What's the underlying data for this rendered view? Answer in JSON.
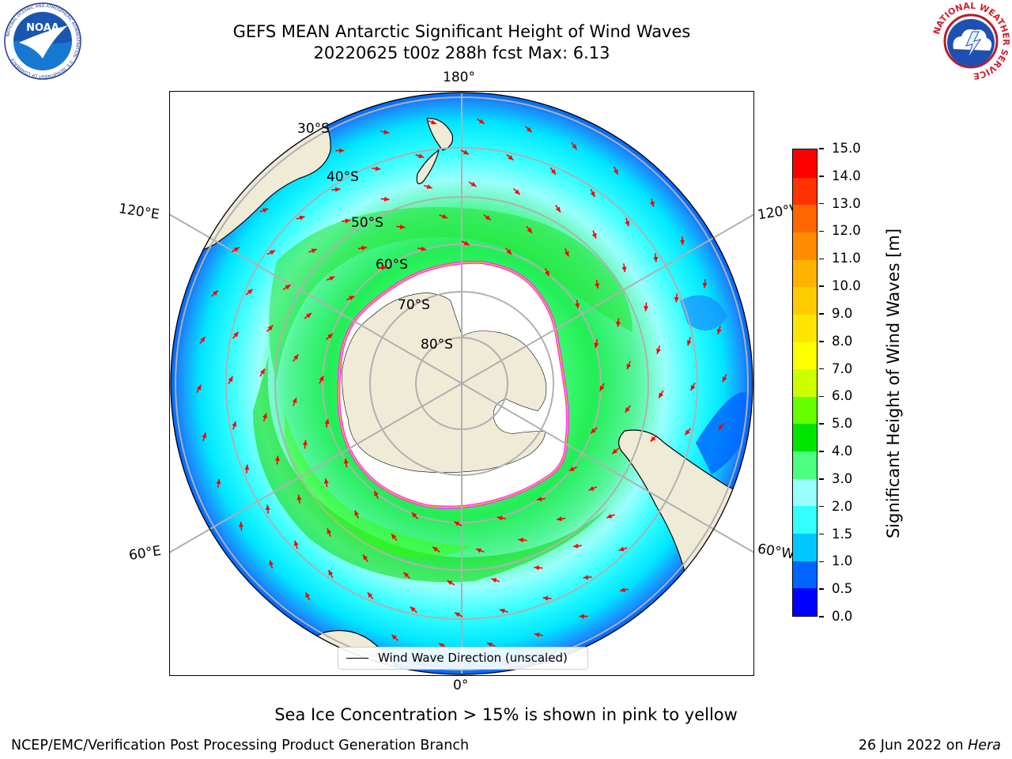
{
  "header": {
    "title_line1": "GEFS MEAN Antarctic Significant Height of Wind Waves",
    "title_line2": "20220625 t00z 288h fcst   Max: 6.13"
  },
  "logos": {
    "left": {
      "name": "NOAA",
      "text": "NOAA",
      "ring_text": "NATIONAL OCEANIC AND ATMOSPHERIC ADMINISTRATION · U.S. DEPARTMENT OF COMMERCE"
    },
    "right": {
      "name": "National Weather Service",
      "ring_text": "NATIONAL WEATHER SERVICE"
    }
  },
  "map": {
    "projection": "south-polar-stereographic",
    "longitude_labels": {
      "top": "180°",
      "left_upper": "120°E",
      "right_upper": "120°W",
      "left_lower": "60°E",
      "right_lower": "60°W",
      "bottom": "0°"
    },
    "latitude_labels": [
      "30°S",
      "40°S",
      "50°S",
      "60°S",
      "70°S",
      "80°S"
    ],
    "legend": "Wind Wave Direction (unscaled)",
    "colors": {
      "land": "#efebd7",
      "ice": "#ffffff",
      "arrow": "#ff0000",
      "ice_edge": "#ff33ff",
      "grid": "#b0b0b0"
    }
  },
  "colorbar": {
    "label": "Significant Height of Wind Waves [m]",
    "ticks": [
      "0.0",
      "0.5",
      "1.0",
      "1.5",
      "2.0",
      "3.0",
      "4.0",
      "5.0",
      "6.0",
      "7.0",
      "8.0",
      "9.0",
      "10.0",
      "11.0",
      "12.0",
      "13.0",
      "14.0",
      "15.0"
    ],
    "colors": [
      "#0000ff",
      "#0064ff",
      "#00c8ff",
      "#33ffff",
      "#9afffc",
      "#4dff80",
      "#00e600",
      "#66ff00",
      "#ccff00",
      "#ffff00",
      "#ffe600",
      "#ffcc00",
      "#ffb300",
      "#ff8c00",
      "#ff6600",
      "#ff3300",
      "#ff0000"
    ]
  },
  "footer": {
    "ice_note": "Sea Ice Concentration > 15% is shown in pink to yellow",
    "credit": "NCEP/EMC/Verification Post Processing Product Generation Branch",
    "date_prefix": "26 Jun 2022 on",
    "host": "Hera"
  }
}
